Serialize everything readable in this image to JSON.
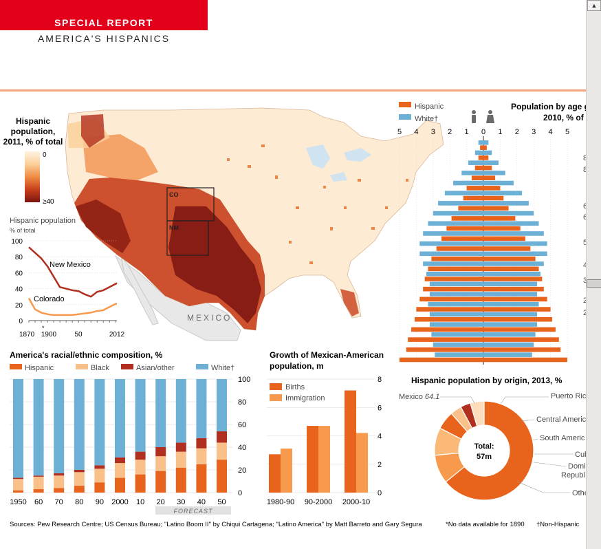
{
  "header": {
    "title": "SPECIAL REPORT",
    "subtitle": "AMERICA'S HISPANICS"
  },
  "colors": {
    "hispanic": "#e8631c",
    "black": "#f9c08a",
    "asian": "#b12f1e",
    "white": "#6db0d6",
    "immigration": "#f79a4e",
    "accent": "#e2001a"
  },
  "map": {
    "title": [
      "Hispanic",
      "population,",
      "2011, % of total"
    ],
    "legend_min": "0",
    "legend_max": "≥40",
    "label_co": "CO",
    "label_nm": "NM",
    "label_mexico": "MEXICO"
  },
  "chart_data": [
    {
      "id": "hispanic-share-states",
      "type": "line",
      "title": "Hispanic population",
      "subtitle": "% of total",
      "xlim": [
        1870,
        2012
      ],
      "ylim": [
        0,
        100
      ],
      "xticklabels": [
        "1870",
        "1900",
        "50",
        "2012"
      ],
      "yticks": [
        0,
        20,
        40,
        60,
        80,
        100
      ],
      "series": [
        {
          "name": "New Mexico",
          "x": [
            1870,
            1880,
            1890,
            1900,
            1910,
            1920,
            1930,
            1940,
            1950,
            1960,
            1970,
            1980,
            1990,
            2000,
            2010,
            2012
          ],
          "y": [
            92,
            85,
            78,
            68,
            55,
            42,
            40,
            38,
            37,
            33,
            30,
            36,
            38,
            42,
            46,
            47
          ]
        },
        {
          "name": "Colorado",
          "x": [
            1870,
            1880,
            1890,
            1900,
            1910,
            1920,
            1930,
            1940,
            1950,
            1960,
            1970,
            1980,
            1990,
            2000,
            2010,
            2012
          ],
          "y": [
            28,
            14,
            10,
            8,
            7,
            7,
            7,
            7,
            8,
            9,
            10,
            12,
            13,
            17,
            21,
            21
          ]
        }
      ]
    },
    {
      "id": "racial-composition",
      "type": "bar",
      "stacked": true,
      "title": "America's racial/ethnic composition, %",
      "categories": [
        "1950",
        "60",
        "70",
        "80",
        "90",
        "2000",
        "10",
        "20",
        "30",
        "40",
        "50"
      ],
      "forecast_label": "FORECAST",
      "ylim": [
        0,
        100
      ],
      "yticks": [
        0,
        20,
        40,
        60,
        80,
        100
      ],
      "series": [
        {
          "name": "Hispanic",
          "values": [
            2,
            3,
            4,
            6,
            9,
            13,
            16,
            19,
            22,
            25,
            29
          ]
        },
        {
          "name": "Black",
          "values": [
            10,
            11,
            11,
            12,
            12,
            13,
            13,
            13,
            14,
            14,
            15
          ]
        },
        {
          "name": "Asian/other",
          "values": [
            1,
            1,
            2,
            2,
            3,
            5,
            7,
            8,
            8,
            9,
            10
          ]
        },
        {
          "name": "White†",
          "values": [
            87,
            85,
            83,
            80,
            76,
            69,
            64,
            60,
            56,
            52,
            46
          ]
        }
      ]
    },
    {
      "id": "mexican-american-growth",
      "type": "bar",
      "title": "Growth of Mexican-American population, m",
      "categories": [
        "1980-90",
        "90-2000",
        "2000-10"
      ],
      "ylim": [
        0,
        8
      ],
      "yticks": [
        0,
        2,
        4,
        6,
        8
      ],
      "series": [
        {
          "name": "Births",
          "values": [
            2.7,
            4.7,
            7.2
          ]
        },
        {
          "name": "Immigration",
          "values": [
            3.1,
            4.7,
            4.2
          ]
        }
      ]
    },
    {
      "id": "age-pyramid",
      "type": "bar",
      "orientation": "horizontal",
      "title": "Population by age g",
      "subtitle": "2010, % of",
      "xticklabels": [
        "5",
        "4",
        "3",
        "2",
        "1",
        "0",
        "1",
        "2",
        "3",
        "4",
        "5"
      ],
      "series": [
        {
          "name": "Hispanic",
          "values": [
            5.0,
            4.6,
            4.5,
            4.3,
            4.1,
            4.0,
            3.8,
            3.6,
            3.5,
            3.3,
            3.1,
            2.8,
            2.5,
            2.2,
            1.9,
            1.5,
            1.2,
            1.0,
            0.7,
            0.5,
            0.3,
            0.2
          ]
        },
        {
          "name": "White†",
          "values": [
            2.9,
            3.0,
            3.1,
            3.2,
            3.2,
            3.3,
            3.2,
            3.2,
            3.4,
            3.6,
            3.8,
            3.8,
            3.6,
            3.3,
            3.0,
            2.7,
            2.3,
            1.8,
            1.3,
            0.9,
            0.5,
            0.3
          ]
        }
      ],
      "right_labels": [
        "8",
        "8",
        "6",
        "6",
        "5",
        "4",
        "3",
        "2",
        "2"
      ]
    },
    {
      "id": "origin-donut",
      "type": "pie",
      "donut": true,
      "title": "Hispanic population by origin, 2013, %",
      "center_label": [
        "Total:",
        "57m"
      ],
      "slices": [
        {
          "name": "Mexico",
          "value": 64.1,
          "label": "Mexico",
          "value_label": "64.1"
        },
        {
          "name": "Puerto Rico",
          "value": 9.4,
          "label": "Puerto Ric"
        },
        {
          "name": "Central America",
          "value": 9.0,
          "label": "Central Americ"
        },
        {
          "name": "South America",
          "value": 6.0,
          "label": "South Americ"
        },
        {
          "name": "Cuba",
          "value": 3.7,
          "label": "Cub"
        },
        {
          "name": "Dominican Republic",
          "value": 3.3,
          "label": [
            "Domi",
            "Republ"
          ]
        },
        {
          "name": "Other",
          "value": 4.5,
          "label": "Othe"
        }
      ]
    }
  ],
  "footer": {
    "sources": "Sources: Pew Research Centre; US Census Bureau; \"Latino Boom II\" by Chiqui Cartagena; \"Latino America\" by Matt Barreto and Gary Segura",
    "note1": "*No data available for 1890",
    "note2": "†Non-Hispanic"
  }
}
